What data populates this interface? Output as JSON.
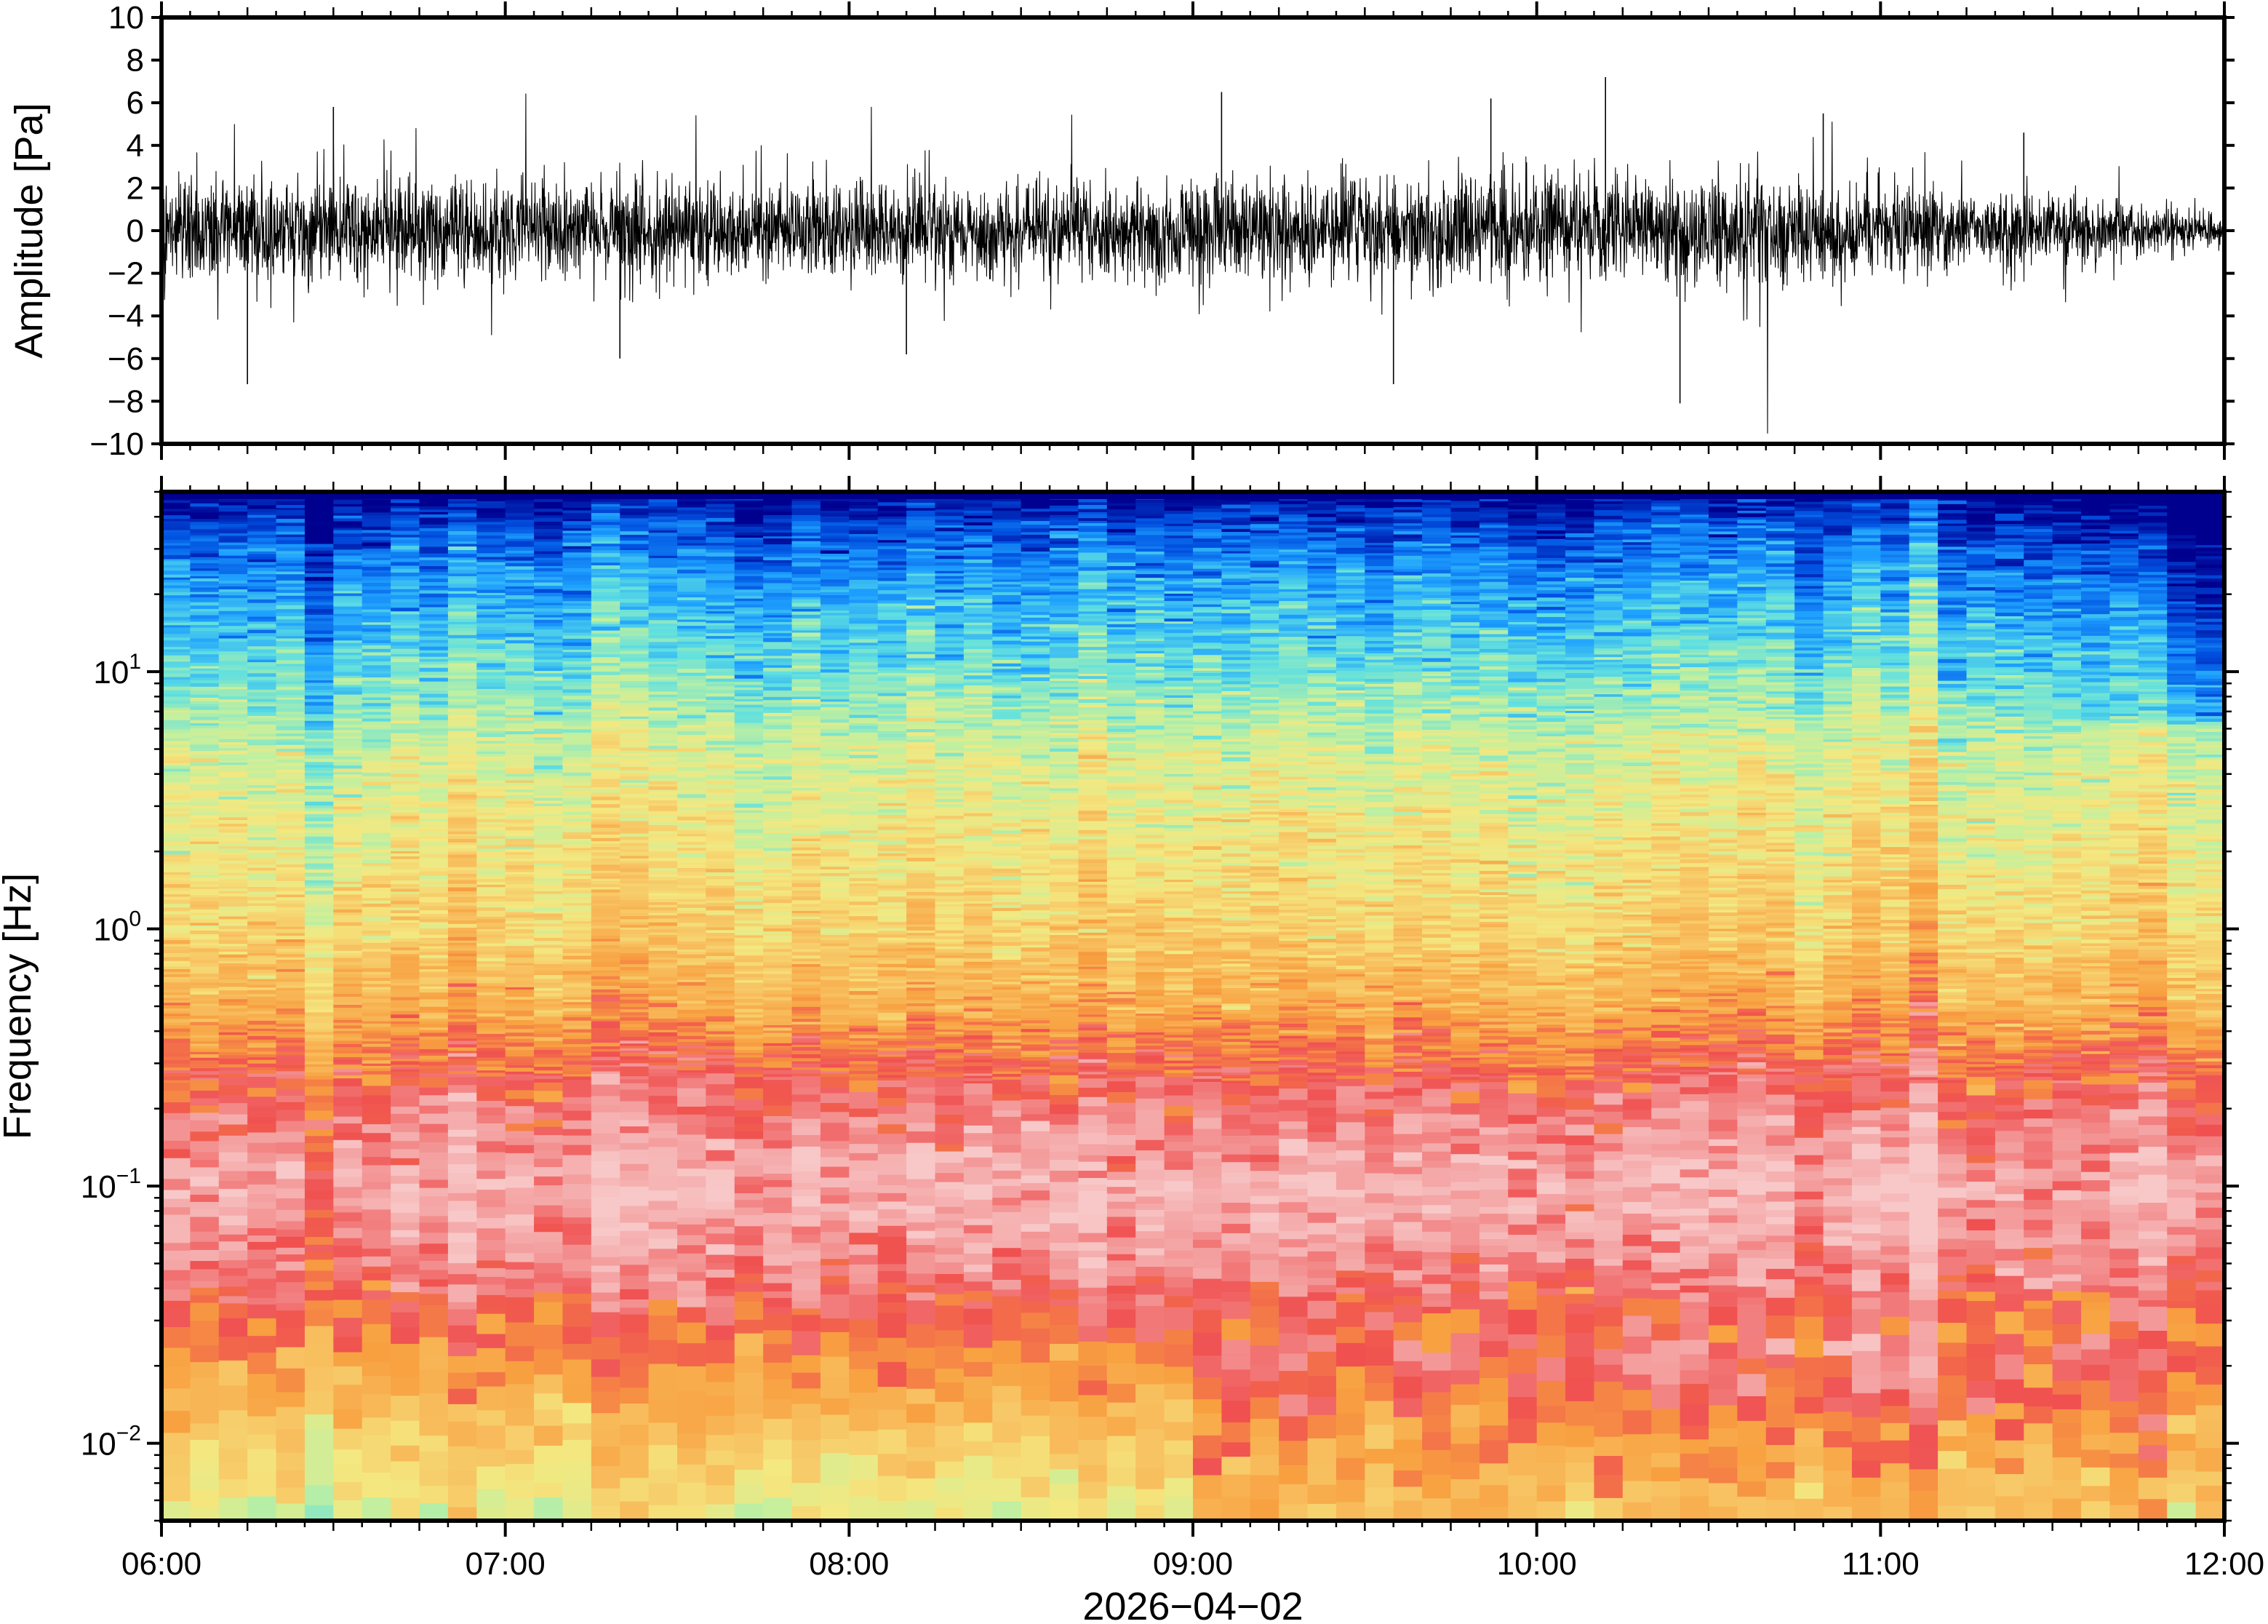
{
  "chart_data": [
    {
      "type": "line",
      "panel": "waveform",
      "ylabel": "Amplitude [Pa]",
      "ylim": [
        -10,
        10
      ],
      "yticks": [
        -10,
        -8,
        -6,
        -4,
        -2,
        0,
        2,
        4,
        6,
        8,
        10
      ],
      "ytick_labels": [
        "−10",
        "−8",
        "−6",
        "−4",
        "−2",
        "0",
        "2",
        "4",
        "6",
        "8",
        "10"
      ],
      "xlim": [
        "06:00",
        "12:00"
      ],
      "grid": false,
      "line_color": "#000000",
      "envelope": {
        "x": [
          "06:00",
          "06:15",
          "06:30",
          "06:45",
          "07:00",
          "07:15",
          "07:30",
          "07:45",
          "08:00",
          "08:15",
          "08:30",
          "08:45",
          "09:00",
          "09:15",
          "09:30",
          "09:45",
          "10:00",
          "10:15",
          "10:30",
          "10:45",
          "11:00",
          "11:15",
          "11:30",
          "11:45",
          "12:00"
        ],
        "amplitude": [
          3.0,
          3.2,
          3.0,
          2.9,
          2.8,
          2.9,
          2.7,
          2.6,
          2.6,
          2.5,
          2.6,
          2.7,
          2.8,
          2.9,
          2.8,
          3.1,
          3.0,
          2.9,
          3.0,
          2.8,
          2.5,
          2.3,
          2.1,
          1.5,
          0.8
        ]
      },
      "peaks": [
        {
          "x": "06:15",
          "y": -7.2
        },
        {
          "x": "06:30",
          "y": 5.8
        },
        {
          "x": "07:20",
          "y": -6.0
        },
        {
          "x": "08:10",
          "y": -5.8
        },
        {
          "x": "09:05",
          "y": 6.5
        },
        {
          "x": "09:35",
          "y": -7.2
        },
        {
          "x": "09:52",
          "y": 6.2
        },
        {
          "x": "10:12",
          "y": 7.2
        },
        {
          "x": "10:25",
          "y": -8.1
        },
        {
          "x": "10:50",
          "y": 5.5
        },
        {
          "x": "11:25",
          "y": 4.6
        }
      ]
    },
    {
      "type": "heatmap",
      "panel": "spectrogram",
      "ylabel": "Frequency [Hz]",
      "yscale": "log",
      "ylim": [
        0.005,
        50
      ],
      "yticks": [
        0.01,
        0.1,
        1,
        10
      ],
      "ytick_labels": [
        {
          "base": "10",
          "exp": "−2"
        },
        {
          "base": "10",
          "exp": "−1"
        },
        {
          "base": "10",
          "exp": "0"
        },
        {
          "base": "10",
          "exp": "1"
        }
      ],
      "xlabel": "2026−04−02",
      "xlim": [
        "06:00",
        "12:00"
      ],
      "xticks": [
        "06:00",
        "07:00",
        "08:00",
        "09:00",
        "10:00",
        "11:00",
        "12:00"
      ],
      "colormap": [
        "#00008f",
        "#0050e0",
        "#1ea0ff",
        "#60e0e0",
        "#c0f0a0",
        "#f4e880",
        "#f8c060",
        "#f8a040",
        "#f05050",
        "#f4a0a0",
        "#f8c8c8"
      ],
      "color_profile": {
        "frequency_hz": [
          50,
          30,
          20,
          10,
          5,
          2,
          1,
          0.5,
          0.3,
          0.1,
          0.05,
          0.02,
          0.01,
          0.005
        ],
        "level": [
          0.1,
          1.5,
          2.2,
          3.2,
          4.4,
          5.1,
          5.6,
          6.6,
          7.8,
          9.5,
          8.8,
          7.0,
          5.8,
          4.6
        ]
      }
    }
  ]
}
